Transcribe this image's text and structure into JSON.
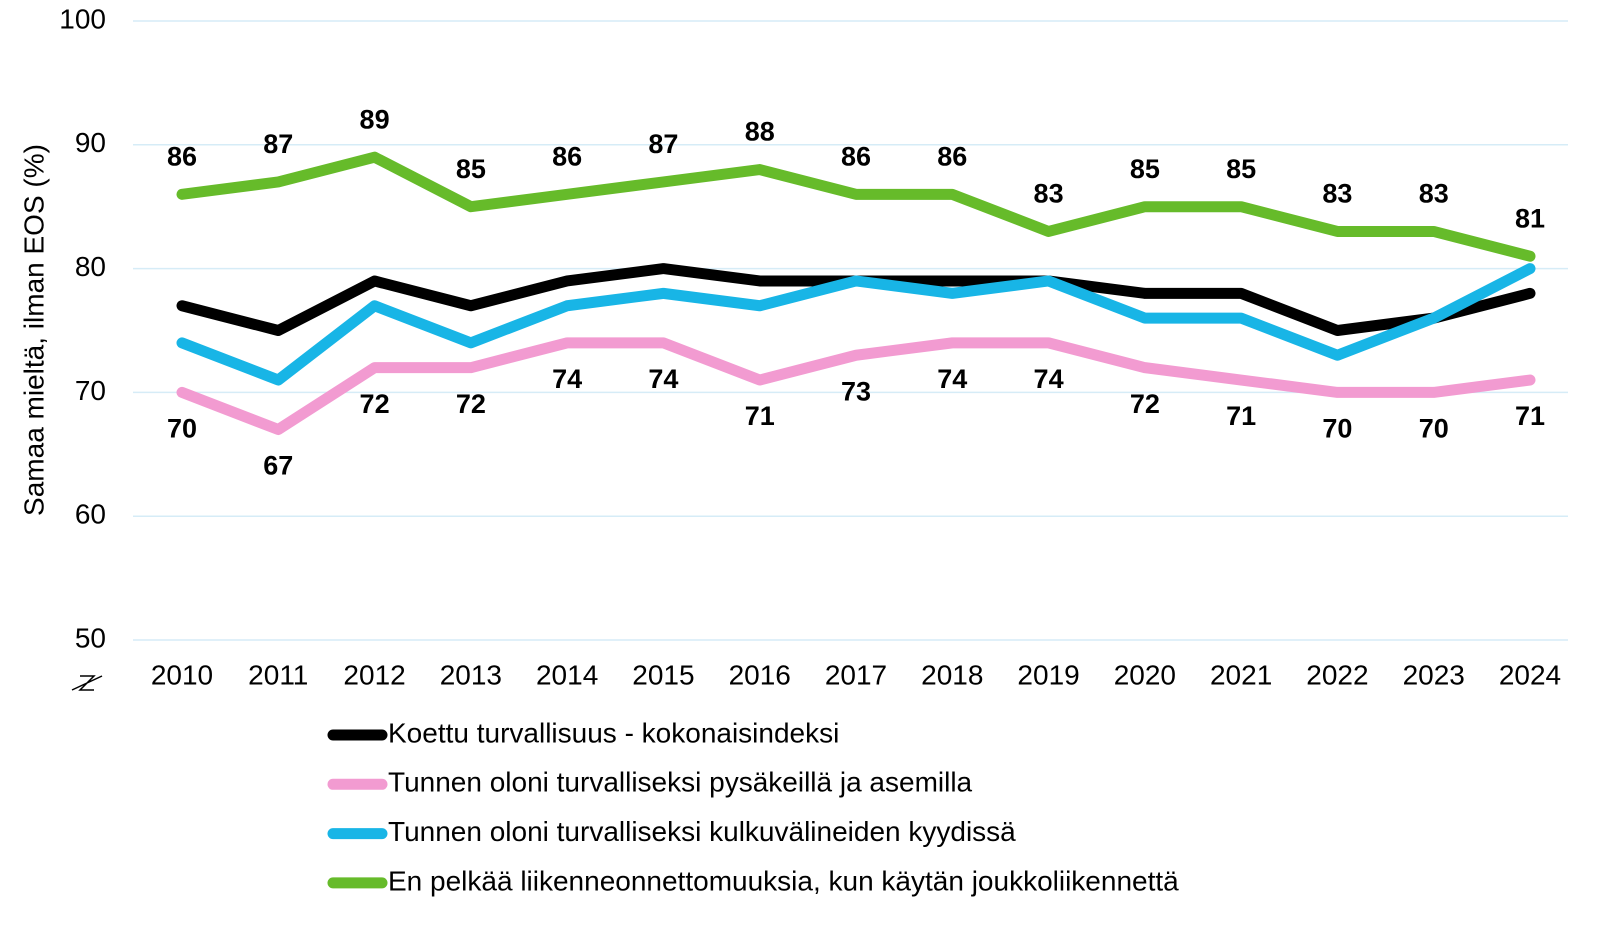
{
  "chart_data": {
    "type": "line",
    "y_label": "Samaa mieltä, ilman EOS (%)",
    "categories": [
      "2010",
      "2011",
      "2012",
      "2013",
      "2014",
      "2015",
      "2016",
      "2017",
      "2018",
      "2019",
      "2020",
      "2021",
      "2022",
      "2023",
      "2024"
    ],
    "series": [
      {
        "name": "Koettu turvallisuus - kokonaisindeksi",
        "color": "#000000",
        "show_labels": false,
        "values": [
          77,
          75,
          79,
          77,
          79,
          80,
          79,
          79,
          79,
          79,
          78,
          78,
          75,
          76,
          78
        ]
      },
      {
        "name": "Tunnen oloni turvalliseksi pysäkeillä ja asemilla",
        "color": "#f29bd1",
        "show_labels": true,
        "label_position": "below",
        "values": [
          70,
          67,
          72,
          72,
          74,
          74,
          71,
          73,
          74,
          74,
          72,
          71,
          70,
          70,
          71
        ]
      },
      {
        "name": "Tunnen oloni turvalliseksi kulkuvälineiden kyydissä",
        "color": "#18b5e6",
        "show_labels": false,
        "values": [
          74,
          71,
          77,
          74,
          77,
          78,
          77,
          79,
          78,
          79,
          76,
          76,
          73,
          76,
          80
        ]
      },
      {
        "name": "En pelkää liikenneonnettomuuksia, kun käytän joukkoliikennettä",
        "color": "#66bb2a",
        "show_labels": true,
        "label_position": "above",
        "values": [
          86,
          87,
          89,
          85,
          86,
          87,
          88,
          86,
          86,
          83,
          85,
          85,
          83,
          83,
          81
        ]
      }
    ],
    "ylim": [
      50,
      100
    ],
    "yticks": [
      50,
      60,
      70,
      80,
      90,
      100
    ],
    "grid": true,
    "legend": "bottom"
  }
}
